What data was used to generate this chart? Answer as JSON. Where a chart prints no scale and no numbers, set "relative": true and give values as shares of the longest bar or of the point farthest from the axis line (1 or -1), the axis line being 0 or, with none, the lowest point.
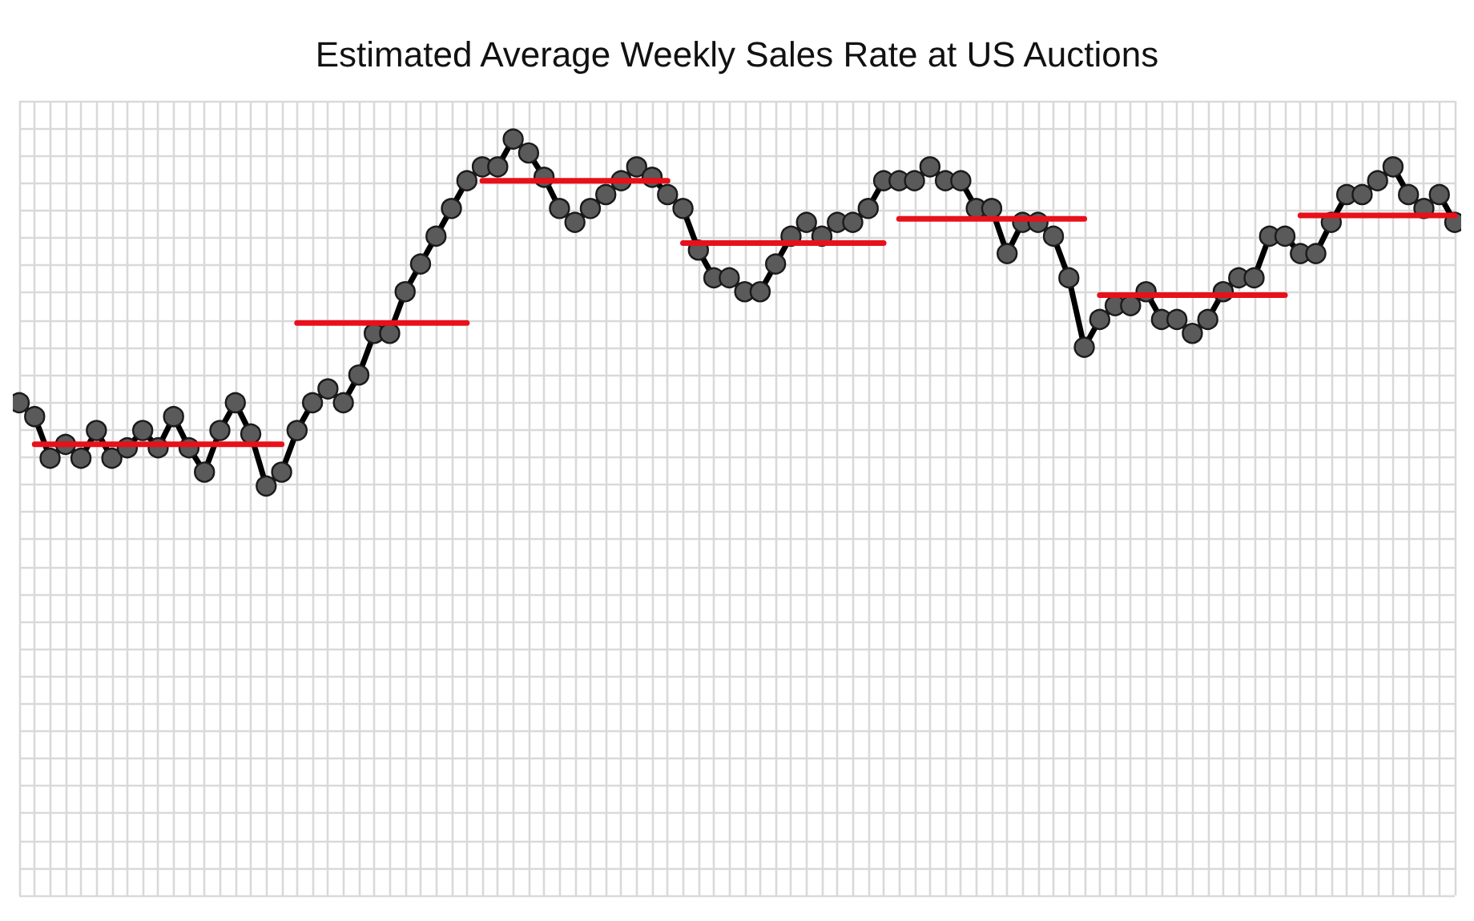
{
  "chart_data": {
    "type": "line",
    "title": "Estimated Average Weekly Sales Rate at US Auctions",
    "relative": true,
    "grid": true,
    "marker": "circle",
    "line_style": "solid",
    "categories": [
      null,
      null,
      null,
      null,
      null,
      null,
      null,
      null,
      null,
      null,
      null,
      null,
      null,
      null,
      null,
      null,
      null,
      null,
      null,
      null,
      null,
      null,
      null,
      null,
      null,
      null,
      null,
      null,
      null,
      null,
      null,
      null,
      null,
      null,
      null,
      null,
      null,
      null,
      null,
      null,
      null,
      null,
      null,
      null,
      null,
      null,
      null,
      null,
      null,
      null,
      null,
      null,
      null,
      null,
      null,
      null,
      null,
      null,
      null,
      null,
      null,
      null,
      null,
      null,
      null,
      null,
      null,
      null,
      null,
      null,
      null,
      null,
      null,
      null,
      null,
      null,
      null,
      null,
      null,
      null,
      null,
      null,
      null,
      null,
      null,
      null,
      null,
      null,
      null,
      null,
      null,
      null,
      null,
      null
    ],
    "series": [
      {
        "color": "#000000",
        "values": [
          0.24,
          0.2,
          0.08,
          0.12,
          0.08,
          0.16,
          0.08,
          0.11,
          0.16,
          0.11,
          0.2,
          0.11,
          0.04,
          0.16,
          0.24,
          0.15,
          0,
          0.04,
          0.16,
          0.24,
          0.28,
          0.24,
          0.32,
          0.44,
          0.44,
          0.56,
          0.64,
          0.72,
          0.8,
          0.88,
          0.92,
          0.92,
          1,
          0.96,
          0.89,
          0.8,
          0.76,
          0.8,
          0.84,
          0.88,
          0.92,
          0.89,
          0.84,
          0.8,
          0.68,
          0.6,
          0.6,
          0.56,
          0.56,
          0.64,
          0.72,
          0.76,
          0.72,
          0.76,
          0.76,
          0.8,
          0.88,
          0.88,
          0.88,
          0.92,
          0.88,
          0.88,
          0.8,
          0.8,
          0.67,
          0.76,
          0.76,
          0.72,
          0.6,
          0.4,
          0.48,
          0.52,
          0.52,
          0.56,
          0.48,
          0.48,
          0.44,
          0.48,
          0.56,
          0.6,
          0.6,
          0.72,
          0.72,
          0.67,
          0.67,
          0.76,
          0.84,
          0.84,
          0.88,
          0.92,
          0.84,
          0.8,
          0.84,
          0.76
        ]
      },
      {
        "color": "#e8101a",
        "marker": "none",
        "values": [
          null,
          0.12,
          0.12,
          0.12,
          0.12,
          0.12,
          0.12,
          0.12,
          0.12,
          0.12,
          0.12,
          0.12,
          0.12,
          0.12,
          0.12,
          0.12,
          0.12,
          0.12,
          null,
          null,
          null,
          null,
          null,
          null,
          null,
          null,
          null,
          null,
          null,
          null,
          null,
          null,
          null,
          null,
          null,
          null,
          null,
          null,
          null,
          null,
          null,
          null,
          null,
          null,
          null,
          null,
          null,
          null,
          null,
          null,
          null,
          null,
          null,
          null,
          null,
          null,
          null,
          null,
          null,
          null,
          null,
          null,
          null,
          null,
          null,
          null,
          null,
          null,
          null,
          null,
          null,
          null,
          null,
          null,
          null,
          null,
          null,
          null,
          null,
          null,
          null,
          null,
          null,
          null,
          null,
          null,
          null,
          null,
          null,
          null,
          null,
          null,
          null,
          null
        ]
      },
      {
        "color": "#e8101a",
        "marker": "none",
        "values": [
          null,
          null,
          null,
          null,
          null,
          null,
          null,
          null,
          null,
          null,
          null,
          null,
          null,
          null,
          null,
          null,
          null,
          null,
          0.47,
          0.47,
          0.47,
          0.47,
          0.47,
          0.47,
          0.47,
          0.47,
          0.47,
          0.47,
          0.47,
          0.47,
          null,
          null,
          null,
          null,
          null,
          null,
          null,
          null,
          null,
          null,
          null,
          null,
          null,
          null,
          null,
          null,
          null,
          null,
          null,
          null,
          null,
          null,
          null,
          null,
          null,
          null,
          null,
          null,
          null,
          null,
          null,
          null,
          null,
          null,
          null,
          null,
          null,
          null,
          null,
          null,
          null,
          null,
          null,
          null,
          null,
          null,
          null,
          null,
          null,
          null,
          null,
          null,
          null,
          null,
          null,
          null,
          null,
          null,
          null,
          null,
          null,
          null,
          null,
          null
        ]
      },
      {
        "color": "#e8101a",
        "marker": "none",
        "values": [
          null,
          null,
          null,
          null,
          null,
          null,
          null,
          null,
          null,
          null,
          null,
          null,
          null,
          null,
          null,
          null,
          null,
          null,
          null,
          null,
          null,
          null,
          null,
          null,
          null,
          null,
          null,
          null,
          null,
          null,
          0.88,
          0.88,
          0.88,
          0.88,
          0.88,
          0.88,
          0.88,
          0.88,
          0.88,
          0.88,
          0.88,
          0.88,
          0.88,
          null,
          null,
          null,
          null,
          null,
          null,
          null,
          null,
          null,
          null,
          null,
          null,
          null,
          null,
          null,
          null,
          null,
          null,
          null,
          null,
          null,
          null,
          null,
          null,
          null,
          null,
          null,
          null,
          null,
          null,
          null,
          null,
          null,
          null,
          null,
          null,
          null,
          null,
          null,
          null,
          null,
          null,
          null,
          null,
          null,
          null,
          null,
          null,
          null,
          null,
          null
        ]
      },
      {
        "color": "#e8101a",
        "marker": "none",
        "values": [
          null,
          null,
          null,
          null,
          null,
          null,
          null,
          null,
          null,
          null,
          null,
          null,
          null,
          null,
          null,
          null,
          null,
          null,
          null,
          null,
          null,
          null,
          null,
          null,
          null,
          null,
          null,
          null,
          null,
          null,
          null,
          null,
          null,
          null,
          null,
          null,
          null,
          null,
          null,
          null,
          null,
          null,
          null,
          0.7,
          0.7,
          0.7,
          0.7,
          0.7,
          0.7,
          0.7,
          0.7,
          0.7,
          0.7,
          0.7,
          0.7,
          0.7,
          0.7,
          null,
          null,
          null,
          null,
          null,
          null,
          null,
          null,
          null,
          null,
          null,
          null,
          null,
          null,
          null,
          null,
          null,
          null,
          null,
          null,
          null,
          null,
          null,
          null,
          null,
          null,
          null,
          null,
          null,
          null,
          null,
          null,
          null,
          null,
          null,
          null,
          null
        ]
      },
      {
        "color": "#e8101a",
        "marker": "none",
        "values": [
          null,
          null,
          null,
          null,
          null,
          null,
          null,
          null,
          null,
          null,
          null,
          null,
          null,
          null,
          null,
          null,
          null,
          null,
          null,
          null,
          null,
          null,
          null,
          null,
          null,
          null,
          null,
          null,
          null,
          null,
          null,
          null,
          null,
          null,
          null,
          null,
          null,
          null,
          null,
          null,
          null,
          null,
          null,
          null,
          null,
          null,
          null,
          null,
          null,
          null,
          null,
          null,
          null,
          null,
          null,
          null,
          null,
          0.77,
          0.77,
          0.77,
          0.77,
          0.77,
          0.77,
          0.77,
          0.77,
          0.77,
          0.77,
          0.77,
          0.77,
          0.77,
          null,
          null,
          null,
          null,
          null,
          null,
          null,
          null,
          null,
          null,
          null,
          null,
          null,
          null,
          null,
          null,
          null,
          null,
          null,
          null,
          null,
          null,
          null,
          null
        ]
      },
      {
        "color": "#e8101a",
        "marker": "none",
        "values": [
          null,
          null,
          null,
          null,
          null,
          null,
          null,
          null,
          null,
          null,
          null,
          null,
          null,
          null,
          null,
          null,
          null,
          null,
          null,
          null,
          null,
          null,
          null,
          null,
          null,
          null,
          null,
          null,
          null,
          null,
          null,
          null,
          null,
          null,
          null,
          null,
          null,
          null,
          null,
          null,
          null,
          null,
          null,
          null,
          null,
          null,
          null,
          null,
          null,
          null,
          null,
          null,
          null,
          null,
          null,
          null,
          null,
          null,
          null,
          null,
          null,
          null,
          null,
          null,
          null,
          null,
          null,
          null,
          null,
          null,
          0.55,
          0.55,
          0.55,
          0.55,
          0.55,
          0.55,
          0.55,
          0.55,
          0.55,
          0.55,
          0.55,
          0.55,
          0.55,
          null,
          null,
          null,
          null,
          null,
          null,
          null,
          null,
          null,
          null,
          null
        ]
      },
      {
        "color": "#e8101a",
        "marker": "none",
        "values": [
          null,
          null,
          null,
          null,
          null,
          null,
          null,
          null,
          null,
          null,
          null,
          null,
          null,
          null,
          null,
          null,
          null,
          null,
          null,
          null,
          null,
          null,
          null,
          null,
          null,
          null,
          null,
          null,
          null,
          null,
          null,
          null,
          null,
          null,
          null,
          null,
          null,
          null,
          null,
          null,
          null,
          null,
          null,
          null,
          null,
          null,
          null,
          null,
          null,
          null,
          null,
          null,
          null,
          null,
          null,
          null,
          null,
          null,
          null,
          null,
          null,
          null,
          null,
          null,
          null,
          null,
          null,
          null,
          null,
          null,
          null,
          null,
          null,
          null,
          null,
          null,
          null,
          null,
          null,
          null,
          null,
          null,
          null,
          0.78,
          0.78,
          0.78,
          0.78,
          0.78,
          0.78,
          0.78,
          0.78,
          0.78,
          0.78,
          0.78
        ]
      }
    ]
  }
}
